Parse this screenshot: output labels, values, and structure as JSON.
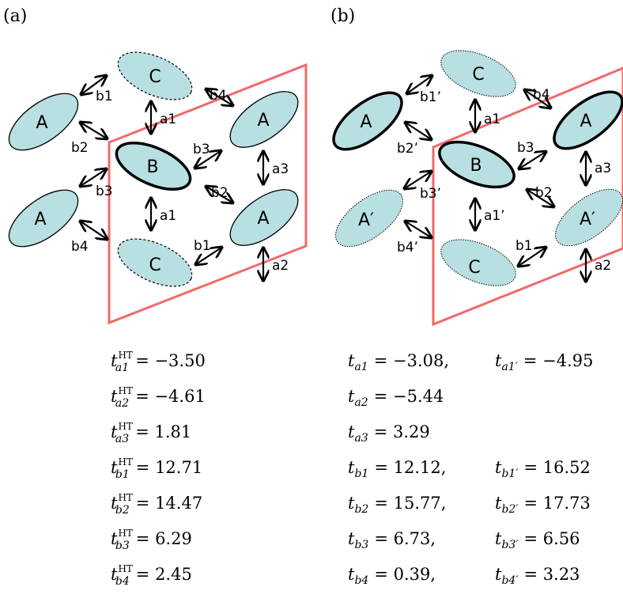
{
  "panels": {
    "a": {
      "label": "(a)",
      "molecules": [
        "C",
        "A",
        "A",
        "B",
        "A",
        "A",
        "C"
      ],
      "bonds": [
        "b1",
        "b2",
        "b3",
        "b4",
        "a1",
        "b4",
        "b3",
        "a3",
        "b2",
        "a1",
        "b1",
        "a2"
      ],
      "equations": [
        {
          "t": "t",
          "sub": "a1",
          "sup": "HT",
          "value": "= −3.50"
        },
        {
          "t": "t",
          "sub": "a2",
          "sup": "HT",
          "value": "= −4.61"
        },
        {
          "t": "t",
          "sub": "a3",
          "sup": "HT",
          "value": "= 1.81"
        },
        {
          "t": "t",
          "sub": "b1",
          "sup": "HT",
          "value": "= 12.71"
        },
        {
          "t": "t",
          "sub": "b2",
          "sup": "HT",
          "value": "= 14.47"
        },
        {
          "t": "t",
          "sub": "b3",
          "sup": "HT",
          "value": "= 6.29"
        },
        {
          "t": "t",
          "sub": "b4",
          "sup": "HT",
          "value": "= 2.45"
        }
      ]
    },
    "b": {
      "label": "(b)",
      "molecules": [
        "C",
        "A",
        "A",
        "B",
        "A′",
        "A′",
        "C"
      ],
      "bonds": [
        "b1’",
        "b2’",
        "b3’",
        "b4’",
        "a1",
        "b4",
        "b3",
        "a3",
        "b2",
        "a1’",
        "b1",
        "a2"
      ],
      "equations": [
        {
          "left": {
            "sub": "a1",
            "value": "= −3.08,"
          },
          "right": {
            "sub": "a1′",
            "value": "= −4.95"
          }
        },
        {
          "left": {
            "sub": "a2",
            "value": "= −5.44"
          }
        },
        {
          "left": {
            "sub": "a3",
            "value": "= 3.29"
          }
        },
        {
          "left": {
            "sub": "b1",
            "value": "= 12.12,"
          },
          "right": {
            "sub": "b1′",
            "value": "= 16.52"
          }
        },
        {
          "left": {
            "sub": "b2",
            "value": "= 15.77,"
          },
          "right": {
            "sub": "b2′",
            "value": "= 17.73"
          }
        },
        {
          "left": {
            "sub": "b3",
            "value": "= 6.73,"
          },
          "right": {
            "sub": "b3′",
            "value": "= 6.56"
          }
        },
        {
          "left": {
            "sub": "b4",
            "value": "= 0.39,"
          },
          "right": {
            "sub": "b4′",
            "value": "= 3.23"
          }
        }
      ]
    }
  },
  "colors": {
    "cell_edge": "#f06a6a",
    "molecule_fill": "#b8dfe2",
    "stroke": "#000000"
  }
}
